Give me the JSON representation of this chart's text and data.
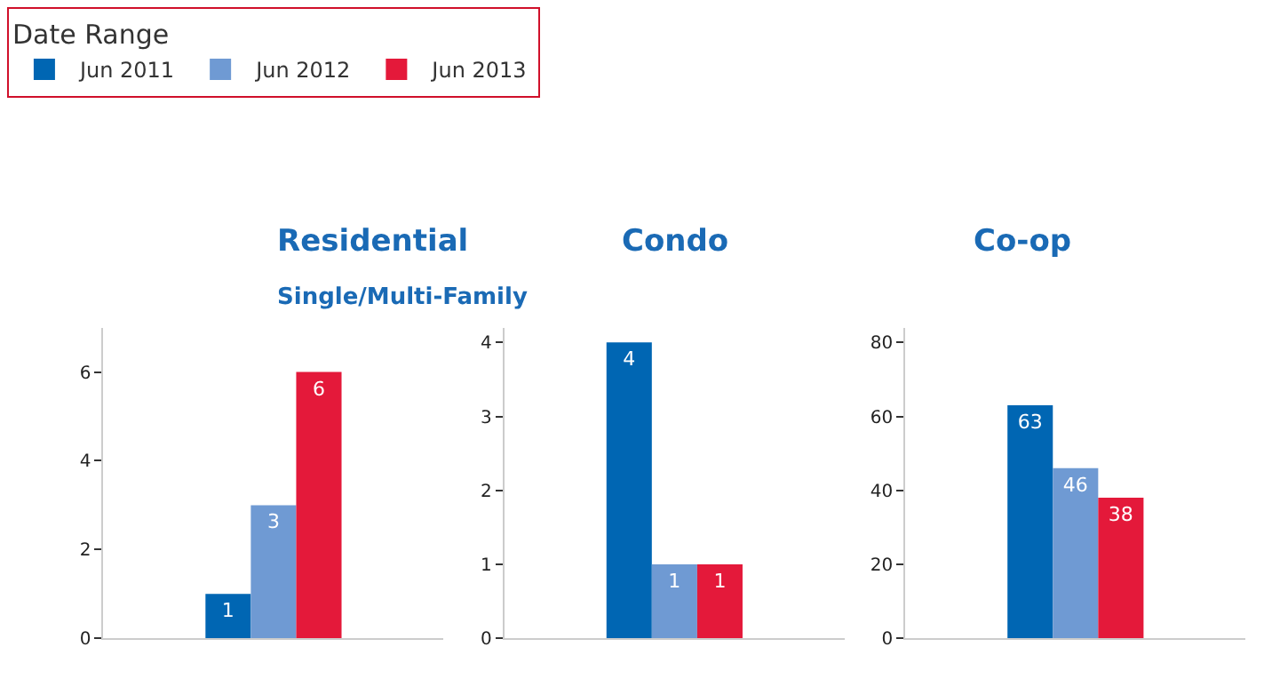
{
  "chart_data": [
    {
      "type": "bar",
      "title": "Residential",
      "subtitle": "Single/Multi-Family",
      "legend_title": "Date Range",
      "legend": "top",
      "categories": [
        null
      ],
      "ylim": [
        0,
        7
      ],
      "yticks": [
        0,
        2,
        4,
        6
      ],
      "data_labels": true,
      "series": [
        {
          "name": "Jun 2011",
          "color": "#0066b3",
          "values": [
            1
          ]
        },
        {
          "name": "Jun 2012",
          "color": "#6f9ad3",
          "values": [
            3
          ]
        },
        {
          "name": "Jun 2013",
          "color": "#e4193a",
          "values": [
            6
          ]
        }
      ]
    },
    {
      "type": "bar",
      "title": "Condo",
      "categories": [
        null
      ],
      "ylim": [
        0,
        4.2
      ],
      "yticks": [
        0,
        1,
        2,
        3,
        4
      ],
      "data_labels": true,
      "series": [
        {
          "color": "#0066b3",
          "values": [
            4
          ]
        },
        {
          "color": "#6f9ad3",
          "values": [
            1
          ]
        },
        {
          "color": "#e4193a",
          "values": [
            1
          ]
        }
      ]
    },
    {
      "type": "bar",
      "title": "Co-op",
      "categories": [
        null
      ],
      "ylim": [
        0,
        84
      ],
      "yticks": [
        0,
        20,
        40,
        60,
        80
      ],
      "data_labels": true,
      "series": [
        {
          "color": "#0066b3",
          "values": [
            63
          ]
        },
        {
          "color": "#6f9ad3",
          "values": [
            46
          ]
        },
        {
          "color": "#e4193a",
          "values": [
            38
          ]
        }
      ]
    }
  ]
}
